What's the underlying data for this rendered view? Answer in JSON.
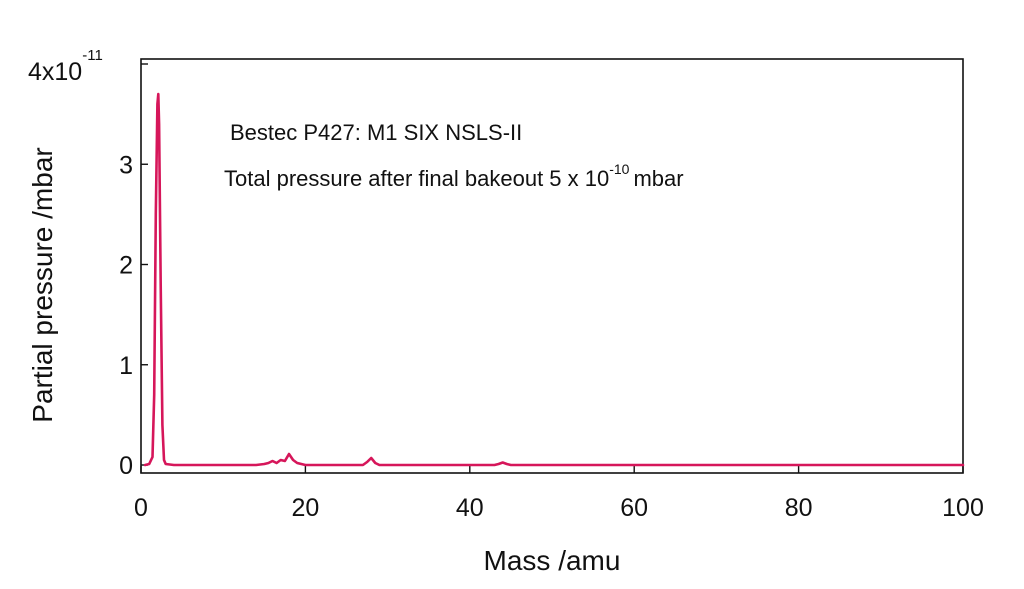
{
  "chart_data": {
    "type": "line",
    "xlabel": "Mass /amu",
    "ylabel": "Partial pressure /mbar",
    "xlim": [
      0,
      100
    ],
    "ylim": [
      0,
      4
    ],
    "y_multiplier": {
      "mantissa": "4x10",
      "exponent": "-11"
    },
    "x_ticks": [
      "0",
      "20",
      "40",
      "60",
      "80",
      "100"
    ],
    "y_ticks": [
      "0",
      "1",
      "2",
      "3"
    ],
    "grid": false,
    "line_color": "#d6165a",
    "annotations": [
      {
        "text": "Bestec P427: M1 SIX NSLS-II"
      },
      {
        "text": "Total pressure after final bakeout 5 x 10",
        "exponent": "-10",
        "suffix": "mbar"
      }
    ],
    "series": [
      {
        "x": [
          0.5,
          1.0,
          1.4,
          1.6,
          1.8,
          2.0,
          2.1,
          2.2,
          2.4,
          2.6,
          2.8,
          3.0,
          4.0,
          6.0,
          10.0,
          14.0,
          15.0,
          15.5,
          16.0,
          16.5,
          17.0,
          17.5,
          18.0,
          18.5,
          19.0,
          19.5,
          20.0,
          24.0,
          27.0,
          27.5,
          28.0,
          28.5,
          29.0,
          32.0,
          40.0,
          43.0,
          43.5,
          44.0,
          44.5,
          45.0,
          50.0,
          60.0,
          70.0,
          80.0,
          90.0,
          100.0
        ],
        "y": [
          0.0,
          0.01,
          0.08,
          0.7,
          2.5,
          3.6,
          3.7,
          3.4,
          1.8,
          0.4,
          0.05,
          0.01,
          0.0,
          0.0,
          0.0,
          0.0,
          0.01,
          0.02,
          0.04,
          0.02,
          0.05,
          0.04,
          0.11,
          0.05,
          0.02,
          0.01,
          0.0,
          0.0,
          0.0,
          0.03,
          0.07,
          0.02,
          0.0,
          0.0,
          0.0,
          0.0,
          0.01,
          0.025,
          0.01,
          0.0,
          0.0,
          0.0,
          0.0,
          0.0,
          0.0,
          0.0
        ]
      }
    ]
  }
}
